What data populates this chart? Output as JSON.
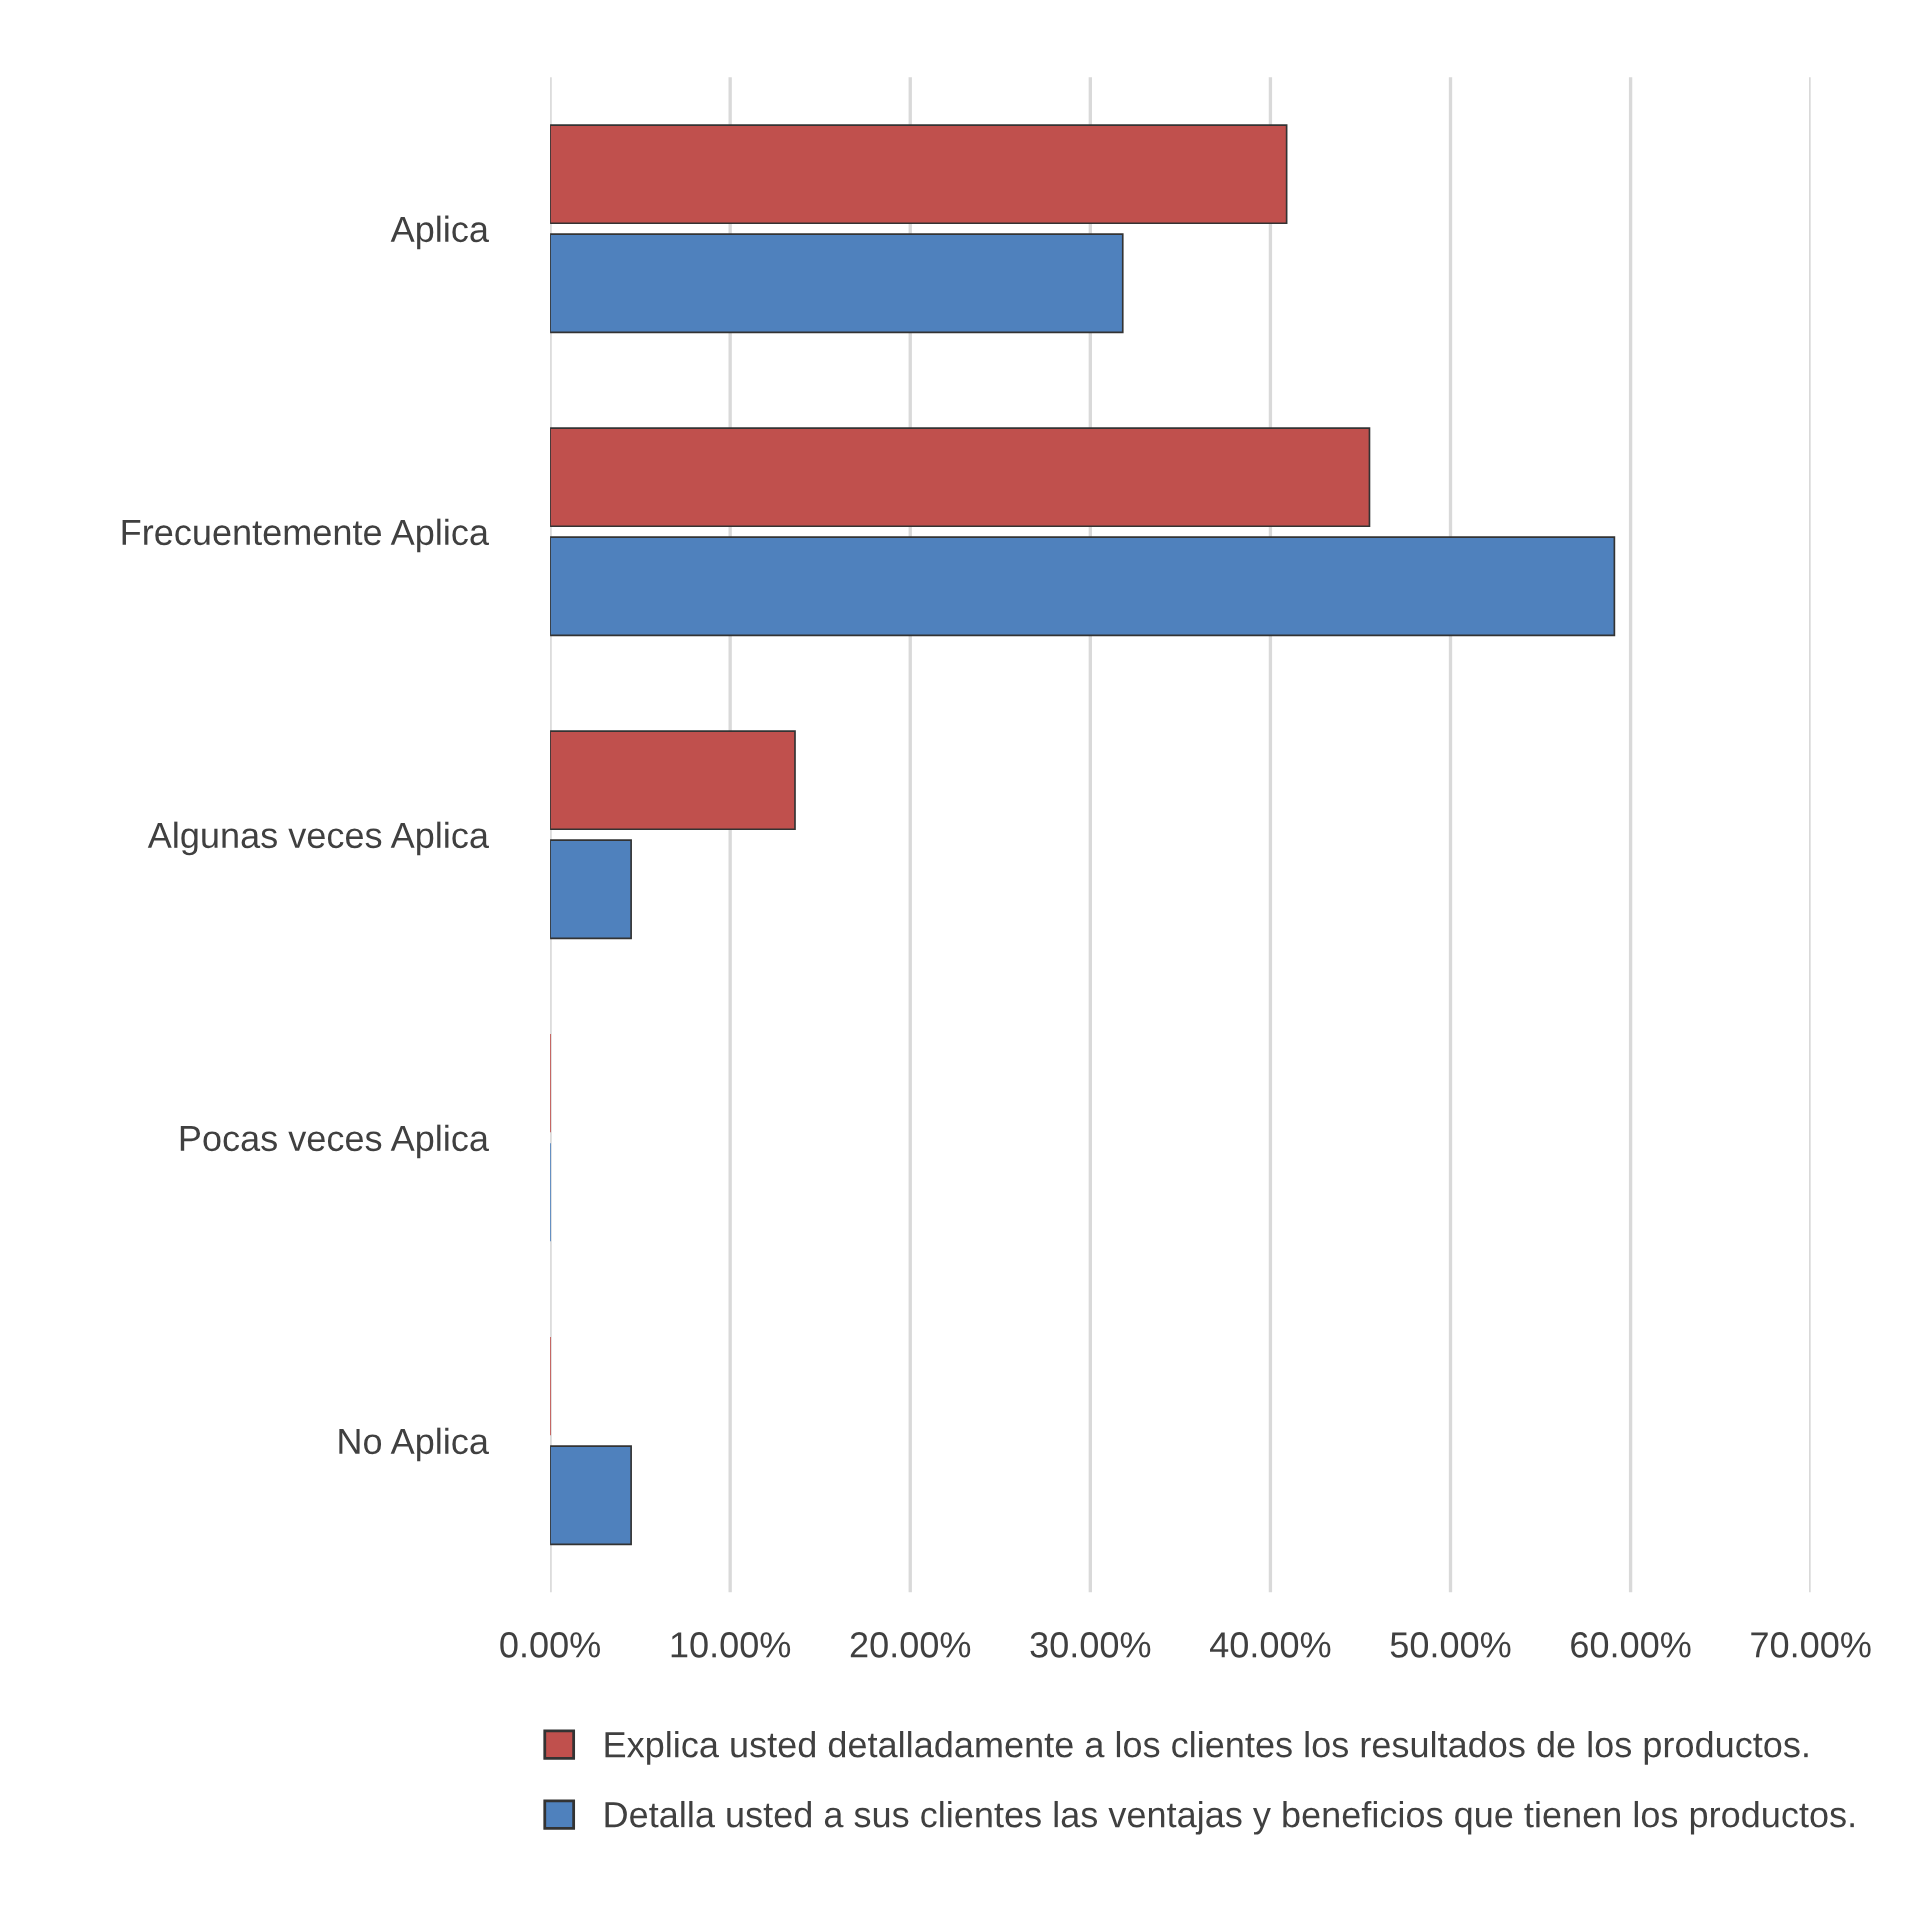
{
  "chart_data": {
    "type": "bar",
    "orientation": "horizontal",
    "categories": [
      "Aplica",
      "Frecuentemente Aplica",
      "Algunas veces Aplica",
      "Pocas veces Aplica",
      "No Aplica"
    ],
    "series": [
      {
        "name": "Explica usted detalladamente a los clientes los resultados de los productos.",
        "color": "#c0504d",
        "values": [
          40.9,
          45.5,
          13.6,
          0,
          0
        ]
      },
      {
        "name": "Detalla usted a sus clientes las ventajas y beneficios que tienen los productos.",
        "color": "#4f81bd",
        "values": [
          31.8,
          59.1,
          4.5,
          0,
          4.5
        ]
      }
    ],
    "xlim": [
      0,
      70
    ],
    "xticks": [
      {
        "value": 0,
        "label": "0.00%"
      },
      {
        "value": 10,
        "label": "10.00%"
      },
      {
        "value": 20,
        "label": "20.00%"
      },
      {
        "value": 30,
        "label": "30.00%"
      },
      {
        "value": 40,
        "label": "40.00%"
      },
      {
        "value": 50,
        "label": "50.00%"
      },
      {
        "value": 60,
        "label": "60.00%"
      },
      {
        "value": 70,
        "label": "70.00%"
      }
    ],
    "grid": "x",
    "legend": "bottom"
  }
}
